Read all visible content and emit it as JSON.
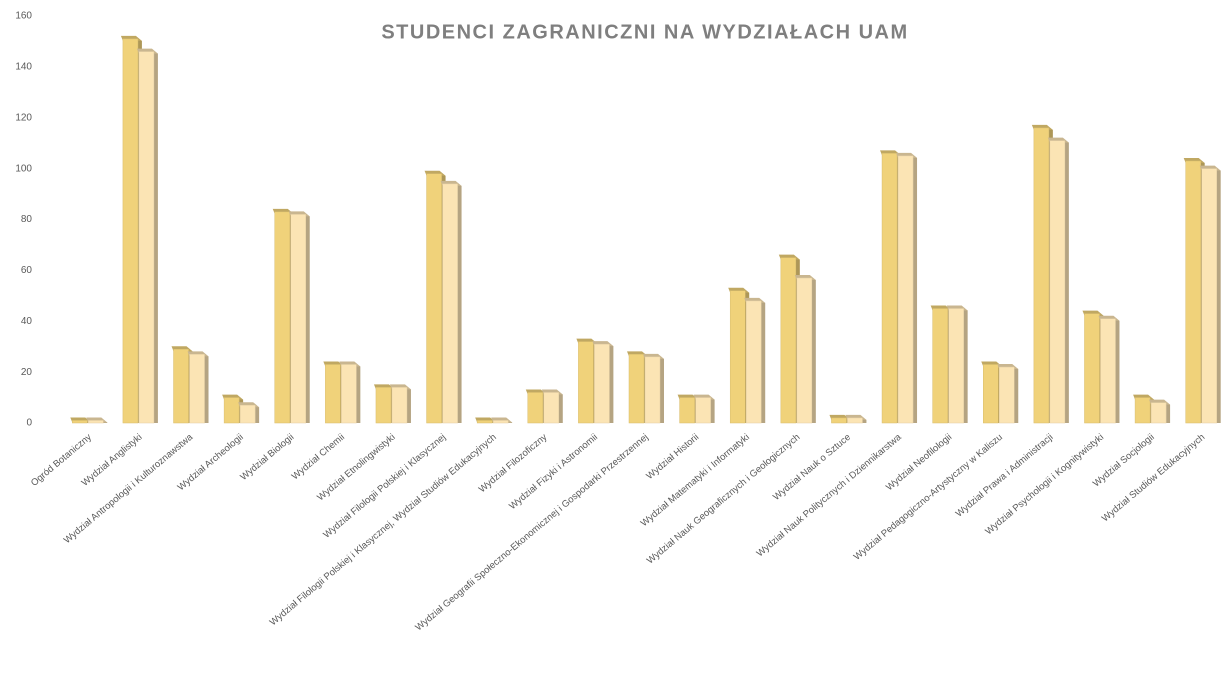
{
  "chart_data": {
    "type": "bar",
    "title": "STUDENCI ZAGRANICZNI NA WYDZIAŁACH UAM",
    "categories": [
      "Ogród Botaniczny",
      "Wydział Anglistyki",
      "Wydział Antropologii i Kulturoznawstwa",
      "Wydział Archeologii",
      "Wydział Biologii",
      "Wydział Chemii",
      "Wydział Etnolingwistyki",
      "Wydział Filologii Polskiej i Klasycznej",
      "Wydział Filologii Polskiej i Klasycznej, Wydział Studiów Edukacyjnych",
      "Wydział Filozoficzny",
      "Wydział Fizyki i Astronomii",
      "Wydział Geografii Społeczno-Ekonomicznej i Gospodarki Przestrzennej",
      "Wydział Historii",
      "Wydział Matematyki i Informatyki",
      "Wydział Nauk Geograficznych i Geologicznych",
      "Wydział Nauk o Sztuce",
      "Wydział Nauk Politycznych i Dziennikarstwa",
      "Wydział Neofilologii",
      "Wydział Pedagogiczno-Artystyczny w Kaliszu",
      "Wydział Prawa i Administracji",
      "Wydział Psychologii i Kognitywistyki",
      "Wydział Socjologii",
      "Wydział Studiów Edukacyjnych"
    ],
    "series": [
      {
        "color": "#f0d27a",
        "values": [
          1,
          151,
          29,
          10,
          83,
          23,
          14,
          98,
          1,
          12,
          32,
          27,
          10,
          52,
          65,
          2,
          106,
          45,
          23,
          116,
          43,
          10,
          103
        ]
      },
      {
        "color": "#fbe4b4",
        "values": [
          1,
          146,
          27,
          7,
          82,
          23,
          14,
          94,
          1,
          12,
          31,
          26,
          10,
          48,
          57,
          2,
          105,
          45,
          22,
          111,
          41,
          8,
          100
        ]
      }
    ],
    "ylim": [
      0,
      160
    ],
    "yticks": [
      0,
      20,
      40,
      60,
      80,
      100,
      120,
      140,
      160
    ],
    "grid": false
  }
}
